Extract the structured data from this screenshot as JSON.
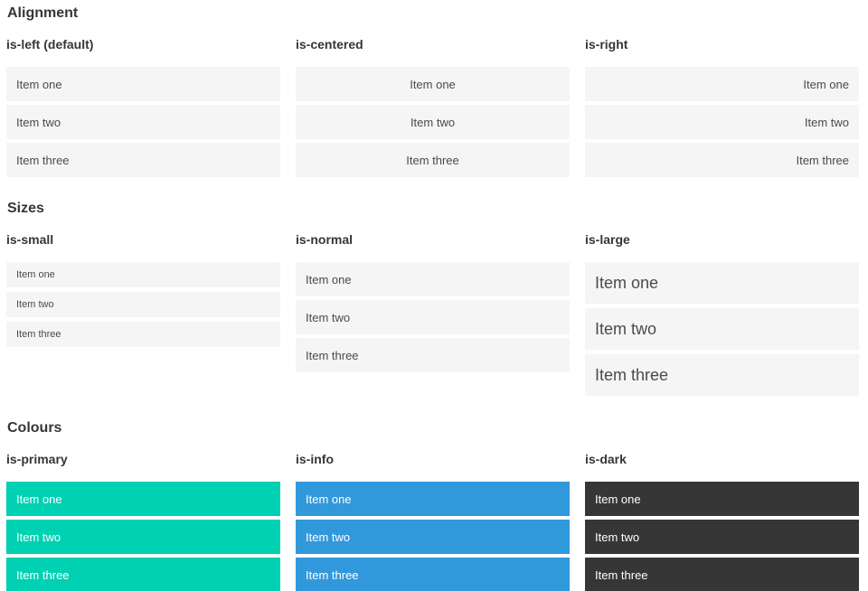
{
  "sections": [
    {
      "title": "Alignment",
      "columns": [
        {
          "heading": "is-left (default)",
          "items": [
            "Item one",
            "Item two",
            "Item three"
          ]
        },
        {
          "heading": "is-centered",
          "items": [
            "Item one",
            "Item two",
            "Item three"
          ]
        },
        {
          "heading": "is-right",
          "items": [
            "Item one",
            "Item two",
            "Item three"
          ]
        }
      ]
    },
    {
      "title": "Sizes",
      "columns": [
        {
          "heading": "is-small",
          "items": [
            "Item one",
            "Item two",
            "Item three"
          ]
        },
        {
          "heading": "is-normal",
          "items": [
            "Item one",
            "Item two",
            "Item three"
          ]
        },
        {
          "heading": "is-large",
          "items": [
            "Item one",
            "Item two",
            "Item three"
          ]
        }
      ]
    },
    {
      "title": "Colours",
      "columns": [
        {
          "heading": "is-primary",
          "items": [
            "Item one",
            "Item two",
            "Item three"
          ]
        },
        {
          "heading": "is-info",
          "items": [
            "Item one",
            "Item two",
            "Item three"
          ]
        },
        {
          "heading": "is-dark",
          "items": [
            "Item one",
            "Item two",
            "Item three"
          ]
        }
      ]
    }
  ],
  "colors": {
    "primary": "#00d1b2",
    "info": "#3298dc",
    "dark": "#363636",
    "item_background": "#f5f5f5",
    "item_text": "#4a4a4a",
    "heading_text": "#363636",
    "colour_item_text": "#ffffff",
    "page_background": "#ffffff"
  }
}
